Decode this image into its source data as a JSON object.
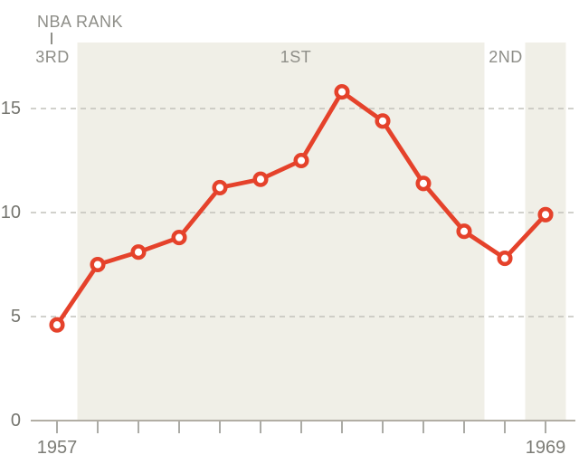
{
  "title_annotation": {
    "label": "NBA RANK",
    "ranks": [
      {
        "label": "3RD",
        "period_years": [
          1957,
          1957
        ],
        "shaded": false
      },
      {
        "label": "1ST",
        "period_years": [
          1958,
          1967
        ],
        "shaded": true
      },
      {
        "label": "2ND",
        "period_years": [
          1968,
          1968
        ],
        "shaded": false
      },
      {
        "label": "",
        "period_years": [
          1969,
          1969
        ],
        "shaded": true
      }
    ]
  },
  "chart_data": {
    "type": "line",
    "x": [
      1957,
      1958,
      1959,
      1960,
      1961,
      1962,
      1963,
      1964,
      1965,
      1966,
      1967,
      1968,
      1969
    ],
    "values": [
      4.6,
      7.5,
      8.1,
      8.8,
      11.2,
      11.6,
      12.5,
      15.8,
      14.4,
      11.4,
      9.1,
      7.8,
      9.9
    ],
    "title": "",
    "xlabel": "",
    "ylabel": "",
    "xlim": [
      1956.4,
      1969.8
    ],
    "ylim": [
      0,
      18.2
    ],
    "yticks": [
      0,
      5,
      10,
      15
    ],
    "ytick_labels": [
      "0",
      "5",
      "10",
      "15"
    ],
    "xtick_labels": [
      "1957",
      "1969"
    ],
    "grid": "dashed-horizontal",
    "legend": "none",
    "marker": "open-circle",
    "colors": {
      "line": "#e5422b",
      "marker_fill": "#ffffff",
      "band": "#f0efe7",
      "gridline": "#c2c2bc",
      "axis": "#b2aea4",
      "tick": "#8f8f89",
      "annotation_text": "#8e8e88",
      "ytick_text": "#75756f",
      "xtick_text": "#7c7c76"
    }
  }
}
